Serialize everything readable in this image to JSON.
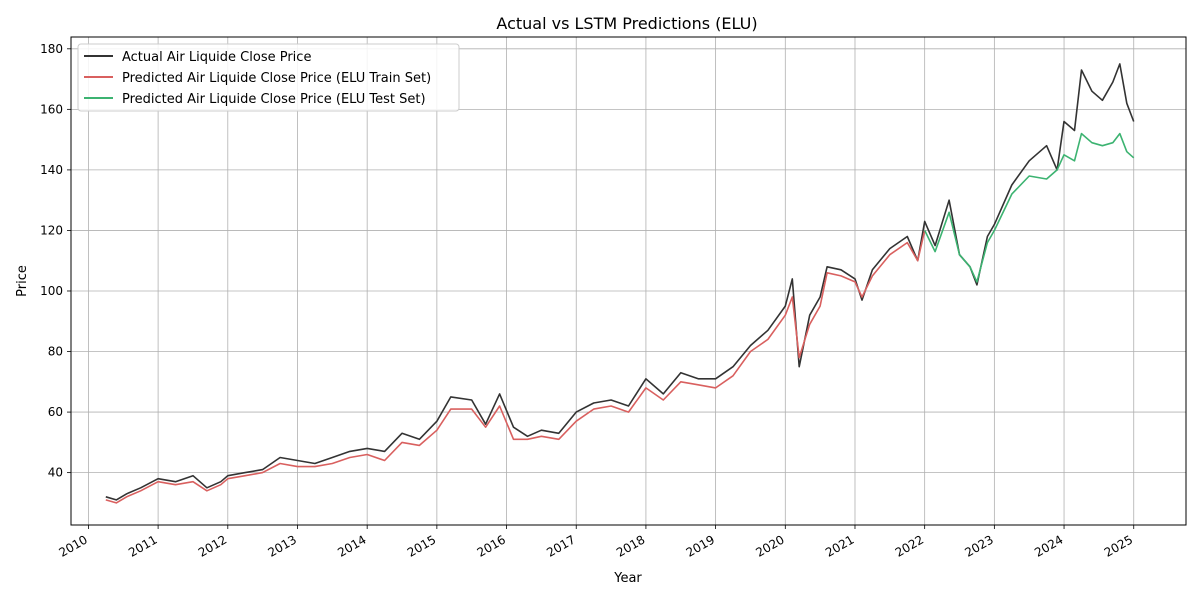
{
  "chart_data": {
    "type": "line",
    "title": "Actual vs LSTM Predictions (ELU)",
    "xlabel": "Year",
    "ylabel": "Price",
    "xlim": [
      2009.75,
      2025.75
    ],
    "ylim": [
      22.7,
      183.9
    ],
    "x_ticks": [
      "2010",
      "2011",
      "2012",
      "2013",
      "2014",
      "2015",
      "2016",
      "2017",
      "2018",
      "2019",
      "2020",
      "2021",
      "2022",
      "2023",
      "2024",
      "2025"
    ],
    "y_ticks": [
      40,
      60,
      80,
      100,
      120,
      140,
      160,
      180
    ],
    "grid": true,
    "legend_position": "top-left",
    "series": [
      {
        "name": "Actual Air Liquide Close Price",
        "color": "#333333",
        "points": [
          [
            2010.25,
            32
          ],
          [
            2010.4,
            31
          ],
          [
            2010.55,
            33
          ],
          [
            2010.75,
            35
          ],
          [
            2011.0,
            38
          ],
          [
            2011.25,
            37
          ],
          [
            2011.5,
            39
          ],
          [
            2011.7,
            35
          ],
          [
            2011.9,
            37
          ],
          [
            2012.0,
            39
          ],
          [
            2012.25,
            40
          ],
          [
            2012.5,
            41
          ],
          [
            2012.75,
            45
          ],
          [
            2013.0,
            44
          ],
          [
            2013.25,
            43
          ],
          [
            2013.5,
            45
          ],
          [
            2013.75,
            47
          ],
          [
            2014.0,
            48
          ],
          [
            2014.25,
            47
          ],
          [
            2014.5,
            53
          ],
          [
            2014.75,
            51
          ],
          [
            2015.0,
            57
          ],
          [
            2015.2,
            65
          ],
          [
            2015.5,
            64
          ],
          [
            2015.7,
            56
          ],
          [
            2015.9,
            66
          ],
          [
            2016.1,
            55
          ],
          [
            2016.3,
            52
          ],
          [
            2016.5,
            54
          ],
          [
            2016.75,
            53
          ],
          [
            2017.0,
            60
          ],
          [
            2017.25,
            63
          ],
          [
            2017.5,
            64
          ],
          [
            2017.75,
            62
          ],
          [
            2018.0,
            71
          ],
          [
            2018.25,
            66
          ],
          [
            2018.5,
            73
          ],
          [
            2018.75,
            71
          ],
          [
            2019.0,
            71
          ],
          [
            2019.25,
            75
          ],
          [
            2019.5,
            82
          ],
          [
            2019.75,
            87
          ],
          [
            2020.0,
            95
          ],
          [
            2020.1,
            104
          ],
          [
            2020.2,
            75
          ],
          [
            2020.35,
            92
          ],
          [
            2020.5,
            98
          ],
          [
            2020.6,
            108
          ],
          [
            2020.8,
            107
          ],
          [
            2021.0,
            104
          ],
          [
            2021.1,
            97
          ],
          [
            2021.25,
            107
          ],
          [
            2021.5,
            114
          ],
          [
            2021.75,
            118
          ],
          [
            2021.9,
            110
          ],
          [
            2022.0,
            123
          ],
          [
            2022.15,
            115
          ],
          [
            2022.35,
            130
          ],
          [
            2022.5,
            112
          ],
          [
            2022.65,
            108
          ],
          [
            2022.75,
            102
          ],
          [
            2022.9,
            118
          ],
          [
            2023.0,
            122
          ],
          [
            2023.25,
            135
          ],
          [
            2023.5,
            143
          ],
          [
            2023.75,
            148
          ],
          [
            2023.9,
            140
          ],
          [
            2024.0,
            156
          ],
          [
            2024.15,
            153
          ],
          [
            2024.25,
            173
          ],
          [
            2024.4,
            166
          ],
          [
            2024.55,
            163
          ],
          [
            2024.7,
            169
          ],
          [
            2024.8,
            175
          ],
          [
            2024.9,
            162
          ],
          [
            2025.0,
            156
          ]
        ]
      },
      {
        "name": "Predicted Air Liquide Close Price (ELU Train Set)",
        "color": "#d9605f",
        "points": [
          [
            2010.25,
            31
          ],
          [
            2010.4,
            30
          ],
          [
            2010.55,
            32
          ],
          [
            2010.75,
            34
          ],
          [
            2011.0,
            37
          ],
          [
            2011.25,
            36
          ],
          [
            2011.5,
            37
          ],
          [
            2011.7,
            34
          ],
          [
            2011.9,
            36
          ],
          [
            2012.0,
            38
          ],
          [
            2012.25,
            39
          ],
          [
            2012.5,
            40
          ],
          [
            2012.75,
            43
          ],
          [
            2013.0,
            42
          ],
          [
            2013.25,
            42
          ],
          [
            2013.5,
            43
          ],
          [
            2013.75,
            45
          ],
          [
            2014.0,
            46
          ],
          [
            2014.25,
            44
          ],
          [
            2014.5,
            50
          ],
          [
            2014.75,
            49
          ],
          [
            2015.0,
            54
          ],
          [
            2015.2,
            61
          ],
          [
            2015.5,
            61
          ],
          [
            2015.7,
            55
          ],
          [
            2015.9,
            62
          ],
          [
            2016.1,
            51
          ],
          [
            2016.3,
            51
          ],
          [
            2016.5,
            52
          ],
          [
            2016.75,
            51
          ],
          [
            2017.0,
            57
          ],
          [
            2017.25,
            61
          ],
          [
            2017.5,
            62
          ],
          [
            2017.75,
            60
          ],
          [
            2018.0,
            68
          ],
          [
            2018.25,
            64
          ],
          [
            2018.5,
            70
          ],
          [
            2018.75,
            69
          ],
          [
            2019.0,
            68
          ],
          [
            2019.25,
            72
          ],
          [
            2019.5,
            80
          ],
          [
            2019.75,
            84
          ],
          [
            2020.0,
            92
          ],
          [
            2020.1,
            98
          ],
          [
            2020.2,
            78
          ],
          [
            2020.35,
            89
          ],
          [
            2020.5,
            95
          ],
          [
            2020.6,
            106
          ],
          [
            2020.8,
            105
          ],
          [
            2021.0,
            103
          ],
          [
            2021.1,
            98
          ],
          [
            2021.25,
            105
          ],
          [
            2021.5,
            112
          ],
          [
            2021.75,
            116
          ],
          [
            2021.9,
            110
          ],
          [
            2022.0,
            120
          ]
        ]
      },
      {
        "name": "Predicted Air Liquide Close Price (ELU Test Set)",
        "color": "#3cb371",
        "points": [
          [
            2022.0,
            120
          ],
          [
            2022.15,
            113
          ],
          [
            2022.35,
            126
          ],
          [
            2022.5,
            112
          ],
          [
            2022.65,
            108
          ],
          [
            2022.75,
            103
          ],
          [
            2022.9,
            116
          ],
          [
            2023.0,
            120
          ],
          [
            2023.25,
            132
          ],
          [
            2023.5,
            138
          ],
          [
            2023.75,
            137
          ],
          [
            2023.9,
            140
          ],
          [
            2024.0,
            145
          ],
          [
            2024.15,
            143
          ],
          [
            2024.25,
            152
          ],
          [
            2024.4,
            149
          ],
          [
            2024.55,
            148
          ],
          [
            2024.7,
            149
          ],
          [
            2024.8,
            152
          ],
          [
            2024.9,
            146
          ],
          [
            2025.0,
            144
          ]
        ]
      }
    ]
  }
}
